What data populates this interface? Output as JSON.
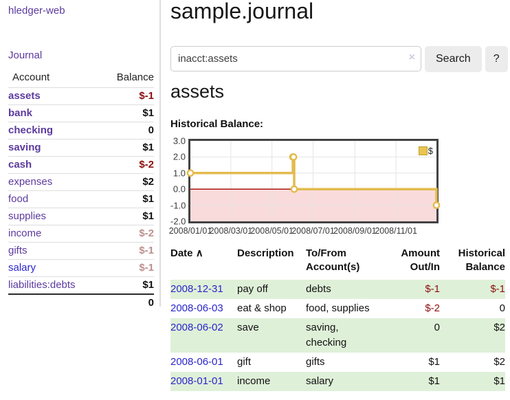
{
  "app": {
    "brand": "hledger-web",
    "nav_journal": "Journal"
  },
  "sidebar": {
    "headers": {
      "account": "Account",
      "balance": "Balance"
    },
    "accounts": [
      {
        "label": "assets",
        "depth": 1,
        "balance": "$-1",
        "highlighted": true,
        "balance_tone": "negative-strong"
      },
      {
        "label": "bank",
        "depth": 2,
        "balance": "$1",
        "highlighted": true,
        "balance_tone": "normal"
      },
      {
        "label": "checking",
        "depth": 3,
        "balance": "0",
        "highlighted": true,
        "balance_tone": "normal"
      },
      {
        "label": "saving",
        "depth": 3,
        "balance": "$1",
        "highlighted": true,
        "balance_tone": "normal"
      },
      {
        "label": "cash",
        "depth": 2,
        "balance": "$-2",
        "highlighted": true,
        "balance_tone": "negative-strong"
      },
      {
        "label": "expenses",
        "depth": 1,
        "balance": "$2",
        "highlighted": false,
        "balance_tone": "normal"
      },
      {
        "label": "food",
        "depth": 2,
        "balance": "$1",
        "highlighted": false,
        "balance_tone": "normal"
      },
      {
        "label": "supplies",
        "depth": 2,
        "balance": "$1",
        "highlighted": false,
        "balance_tone": "normal"
      },
      {
        "label": "income",
        "depth": 1,
        "balance": "$-2",
        "highlighted": false,
        "balance_tone": "negative-soft"
      },
      {
        "label": "gifts",
        "depth": 2,
        "balance": "$-1",
        "highlighted": false,
        "balance_tone": "negative-soft"
      },
      {
        "label": "salary",
        "depth": 2,
        "balance": "$-1",
        "highlighted": false,
        "balance_tone": "negative-soft",
        "link_color": "blue"
      },
      {
        "label": "liabilities:debts",
        "depth": 1,
        "balance": "$1",
        "highlighted": false,
        "balance_tone": "normal"
      }
    ],
    "total": "0"
  },
  "header": {
    "title": "sample.journal"
  },
  "search": {
    "value": "inacct:assets",
    "clear_icon": "×",
    "button_label": "Search",
    "help_label": "?"
  },
  "account_page": {
    "heading": "assets",
    "chart_label": "Historical Balance:"
  },
  "chart_data": {
    "type": "line",
    "title": "Historical Balance",
    "step": true,
    "legend": [
      "$"
    ],
    "legend_position": "top-right",
    "x": [
      "2008-01-01",
      "2008-06-01",
      "2008-06-02",
      "2008-06-03",
      "2008-12-31"
    ],
    "values": [
      1,
      2,
      2,
      0,
      -1
    ],
    "point_days": [
      0,
      152,
      153,
      154,
      365
    ],
    "x_range_days": 365,
    "ylim": [
      -2,
      3
    ],
    "y_ticks": [
      "3.0",
      "2.0",
      "1.0",
      "0.0",
      "-1.0",
      "-2.0"
    ],
    "y_tick_values": [
      3,
      2,
      1,
      0,
      -1,
      -2
    ],
    "x_ticks": [
      "2008/01/01",
      "2008/03/01",
      "2008/05/01",
      "2008/07/01",
      "2008/09/01",
      "2008/11/01"
    ],
    "x_tick_days": [
      0,
      60,
      121,
      182,
      244,
      305
    ],
    "grid": true,
    "line_color": "#e3bb4e",
    "negative_fill": "#f9dbdb",
    "zero_line_color": "#a40000"
  },
  "register": {
    "headers": {
      "date": "Date",
      "sort_icon": "∧",
      "description": "Description",
      "accounts": "To/From Account(s)",
      "amount": "Amount Out/In",
      "balance": "Historical Balance"
    },
    "rows": [
      {
        "date": "2008-12-31",
        "description": "pay off",
        "accounts": "debts",
        "amount": "$-1",
        "amount_negative": true,
        "balance": "$-1",
        "balance_negative": true
      },
      {
        "date": "2008-06-03",
        "description": "eat & shop",
        "accounts": "food, supplies",
        "amount": "$-2",
        "amount_negative": true,
        "balance": "0",
        "balance_negative": false
      },
      {
        "date": "2008-06-02",
        "description": "save",
        "accounts": "saving, checking",
        "amount": "0",
        "amount_negative": false,
        "balance": "$2",
        "balance_negative": false
      },
      {
        "date": "2008-06-01",
        "description": "gift",
        "accounts": "gifts",
        "amount": "$1",
        "amount_negative": false,
        "balance": "$2",
        "balance_negative": false
      },
      {
        "date": "2008-01-01",
        "description": "income",
        "accounts": "salary",
        "amount": "$1",
        "amount_negative": false,
        "balance": "$1",
        "balance_negative": false
      }
    ]
  },
  "colors": {
    "link_purple": "#5c3a9e",
    "link_blue": "#2a25cc",
    "negative_strong": "#8b0e0e",
    "negative_soft": "#bd8f8f",
    "row_stripe_green": "#dff0d8",
    "chart_line_gold": "#e3bb4e",
    "chart_negative_fill": "#f9dbdb",
    "chart_zero_line": "#a40000"
  }
}
